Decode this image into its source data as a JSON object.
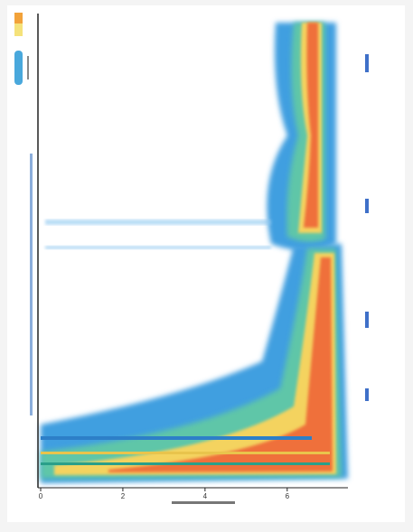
{
  "chart_data": {
    "type": "heatmap",
    "xlim": [
      0,
      7.5
    ],
    "xticks": [
      0,
      2,
      4,
      6
    ]
  }
}
